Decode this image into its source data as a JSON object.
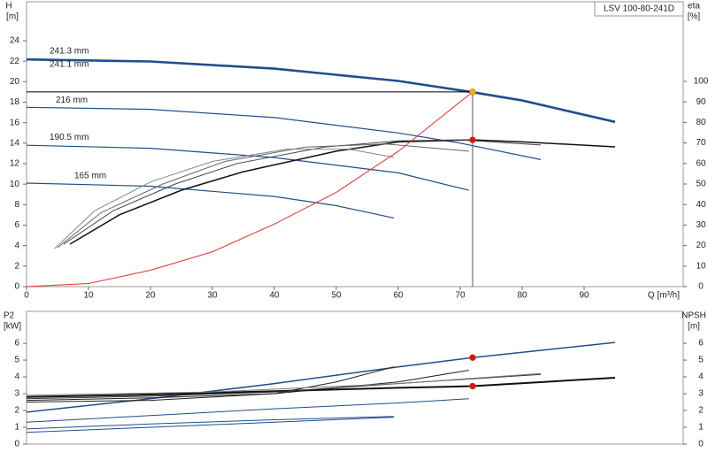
{
  "chart_data": [
    {
      "type": "line",
      "badge": "LSV 100-80-241D",
      "ylabel": "H",
      "yunit": "[m]",
      "y2label": "eta",
      "y2unit": "[%]",
      "xlabel": "Q [m³/h]",
      "xlim": [
        0,
        106
      ],
      "xticks": [
        0,
        10,
        20,
        30,
        40,
        50,
        60,
        70,
        80,
        90
      ],
      "ylim": [
        0,
        27.8
      ],
      "yticks": [
        0,
        2,
        4,
        6,
        8,
        10,
        12,
        14,
        16,
        18,
        20,
        22,
        24
      ],
      "y2lim": [
        0,
        138.8
      ],
      "y2ticks": [
        0,
        10,
        20,
        30,
        40,
        50,
        60,
        70,
        80,
        90,
        100
      ],
      "grid": false,
      "series": [
        {
          "name": "241.3 mm",
          "color": "#1f4e8c",
          "width": 2,
          "x": [
            0,
            20,
            40,
            60,
            72,
            80,
            95
          ],
          "values": [
            22.2,
            22.0,
            21.3,
            20.1,
            19.0,
            18.2,
            16.1
          ]
        },
        {
          "name": "241.1 mm",
          "color": "#1f4e8c",
          "width": 1,
          "x": [
            0,
            20,
            40,
            60,
            72,
            80,
            95
          ],
          "values": [
            22.1,
            21.9,
            21.2,
            20.0,
            18.9,
            18.1,
            16.0
          ]
        },
        {
          "name": "216 mm",
          "color": "#1f4e8c",
          "width": 1.2,
          "x": [
            0,
            20,
            40,
            60,
            70,
            83
          ],
          "values": [
            17.5,
            17.3,
            16.5,
            15.0,
            14.0,
            12.4
          ]
        },
        {
          "name": "190.5 mm",
          "color": "#1f4e8c",
          "width": 1.2,
          "x": [
            0,
            20,
            40,
            60,
            71.4
          ],
          "values": [
            13.8,
            13.5,
            12.6,
            11.1,
            9.4
          ]
        },
        {
          "name": "165 mm",
          "color": "#1f4e8c",
          "width": 1.2,
          "x": [
            0,
            20,
            40,
            50,
            59.3
          ],
          "values": [
            10.1,
            9.8,
            8.8,
            7.9,
            6.7
          ]
        },
        {
          "axis": "y2",
          "color": "#111",
          "width": 1.5,
          "x": [
            7,
            15,
            25,
            35,
            50,
            60,
            72,
            80,
            95
          ],
          "values": [
            20.7,
            35,
            47,
            56,
            66,
            70.5,
            71.5,
            70.5,
            68.1
          ]
        },
        {
          "axis": "y2",
          "color": "#444",
          "width": 1,
          "x": [
            6,
            14,
            24,
            34,
            48,
            60,
            70,
            83
          ],
          "values": [
            20.7,
            37,
            50,
            60,
            68,
            71,
            71.5,
            69
          ]
        },
        {
          "axis": "y2",
          "color": "#666",
          "width": 1,
          "x": [
            5,
            12,
            22,
            32,
            45,
            58,
            71.4
          ],
          "values": [
            19,
            36,
            50,
            61,
            68,
            69.5,
            66
          ]
        },
        {
          "axis": "y2",
          "color": "#888",
          "width": 1,
          "x": [
            4.5,
            11,
            20,
            30,
            42,
            52,
            59.3
          ],
          "values": [
            18.5,
            37,
            51,
            61,
            67,
            67,
            63
          ]
        },
        {
          "color": "#e03030",
          "width": 1,
          "x": [
            0,
            10,
            20,
            30,
            40,
            50,
            60,
            72
          ],
          "values": [
            0,
            0.3,
            1.6,
            3.4,
            6.1,
            9.2,
            13.2,
            19.0
          ]
        }
      ],
      "markers": [
        {
          "x": 72,
          "y": 19.0,
          "color": "#f5b400",
          "guide": true
        },
        {
          "x": 72,
          "y": 71.5,
          "color": "#e01010",
          "axis": "y2"
        }
      ]
    },
    {
      "type": "line",
      "ylabel": "P2",
      "yunit": "[kW]",
      "y2label": "NPSH",
      "y2unit": "[m]",
      "xlim": [
        0,
        106
      ],
      "ylim": [
        0,
        7.9
      ],
      "yticks": [
        0,
        1,
        2,
        3,
        4,
        5,
        6
      ],
      "y2lim": [
        0,
        7.9
      ],
      "y2ticks": [
        0,
        1,
        2,
        3,
        4,
        5,
        6
      ],
      "series": [
        {
          "color": "#1f4e8c",
          "width": 1.5,
          "axis": "y2",
          "x": [
            0,
            20,
            40,
            60,
            72,
            95
          ],
          "values": [
            1.9,
            2.7,
            3.6,
            4.6,
            5.15,
            6.05
          ]
        },
        {
          "color": "#1f4e8c",
          "width": 1,
          "axis": "y2",
          "x": [
            0,
            20,
            40,
            60,
            71.4
          ],
          "values": [
            1.3,
            1.7,
            2.1,
            2.45,
            2.7
          ]
        },
        {
          "color": "#1f4e8c",
          "width": 1,
          "axis": "y2",
          "x": [
            0,
            20,
            40,
            59.3
          ],
          "values": [
            0.9,
            1.2,
            1.45,
            1.65
          ]
        },
        {
          "color": "#1f4e8c",
          "width": 1,
          "axis": "y2",
          "x": [
            0,
            20,
            40,
            59.3
          ],
          "values": [
            0.7,
            1.0,
            1.3,
            1.6
          ]
        },
        {
          "color": "#111",
          "width": 2,
          "x": [
            0,
            20,
            40,
            60,
            72,
            95
          ],
          "values": [
            2.8,
            2.95,
            3.15,
            3.35,
            3.45,
            3.95
          ]
        },
        {
          "color": "#333",
          "width": 1,
          "x": [
            0,
            20,
            40,
            60,
            83
          ],
          "values": [
            2.7,
            2.85,
            3.1,
            3.6,
            4.15
          ]
        },
        {
          "color": "#222",
          "width": 1,
          "x": [
            0,
            20,
            40,
            60,
            71.4
          ],
          "values": [
            2.6,
            2.75,
            3.0,
            3.7,
            4.4
          ]
        },
        {
          "color": "#222",
          "width": 1,
          "x": [
            0,
            20,
            40,
            50,
            59.3
          ],
          "values": [
            2.5,
            2.6,
            3.0,
            3.7,
            4.6
          ]
        },
        {
          "color": "#777",
          "width": 1,
          "x": [
            0,
            30,
            60,
            83
          ],
          "values": [
            2.9,
            3.1,
            3.6,
            4.2
          ]
        }
      ],
      "markers": [
        {
          "x": 72,
          "y": 5.15,
          "color": "#e01010",
          "axis": "y2"
        },
        {
          "x": 72,
          "y": 3.45,
          "color": "#e01010"
        }
      ]
    }
  ]
}
